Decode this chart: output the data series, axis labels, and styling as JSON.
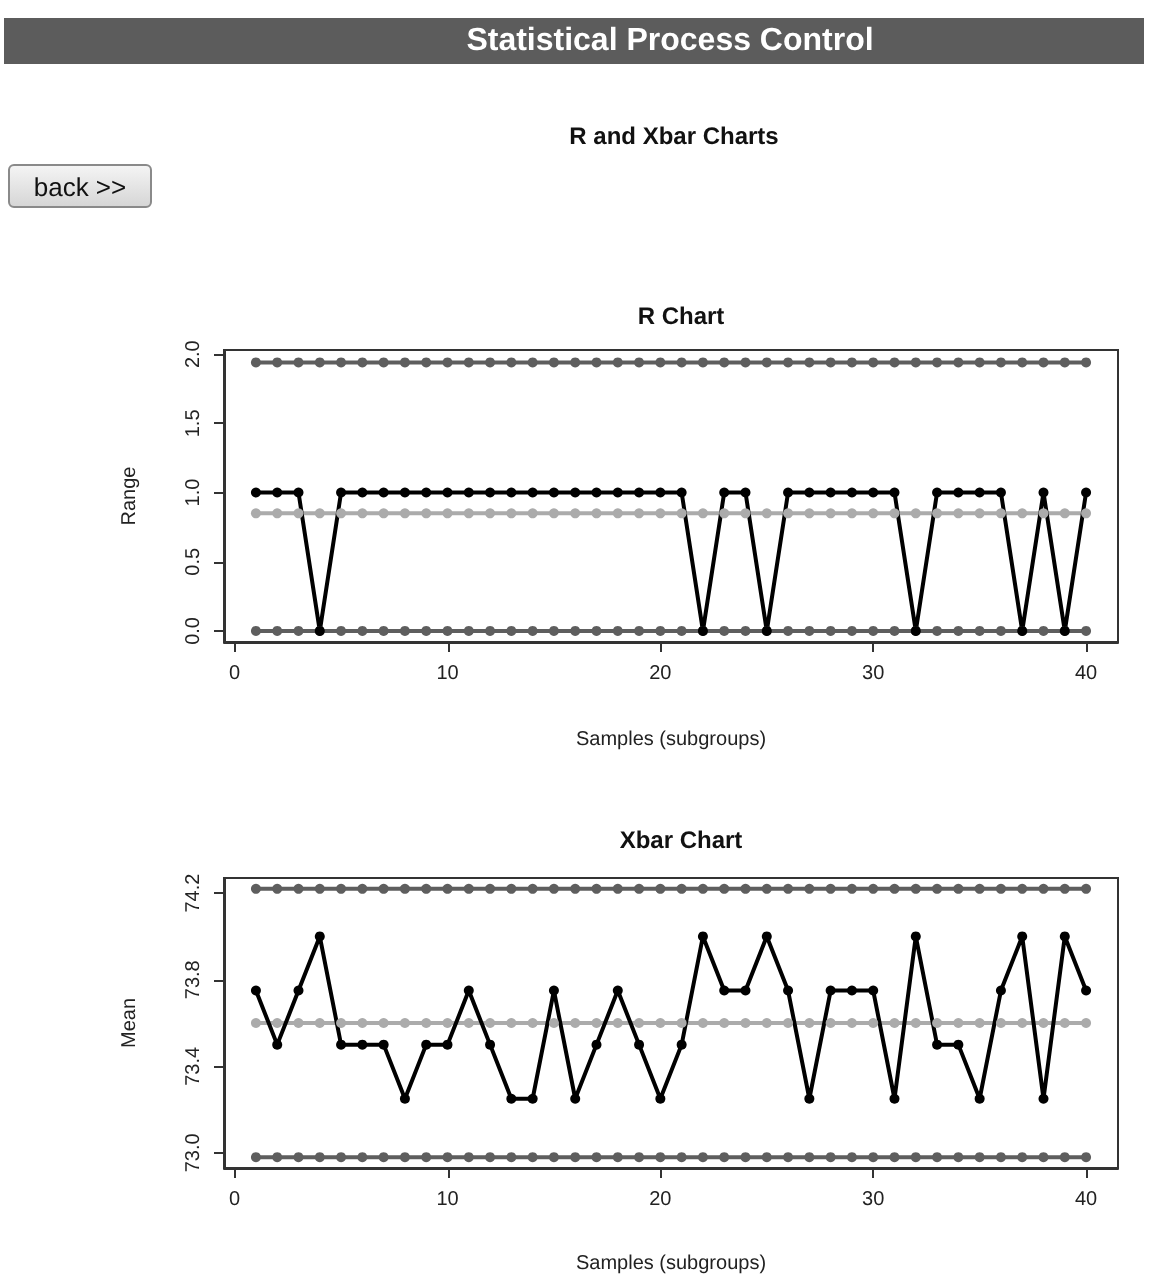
{
  "chart_data": [
    {
      "type": "other",
      "title": "Statistical Process Control",
      "subtitle": "R and Xbar Charts",
      "annotations": [
        "back >>"
      ]
    },
    {
      "type": "line",
      "title": "R Chart",
      "xlabel": "Samples (subgroups)",
      "ylabel": "Range",
      "marker": "circle",
      "x": [
        1,
        2,
        3,
        4,
        5,
        6,
        7,
        8,
        9,
        10,
        11,
        12,
        13,
        14,
        15,
        16,
        17,
        18,
        19,
        20,
        21,
        22,
        23,
        24,
        25,
        26,
        27,
        28,
        29,
        30,
        31,
        32,
        33,
        34,
        35,
        36,
        37,
        38,
        39,
        40
      ],
      "xlim": [
        -0.5,
        41.5
      ],
      "xticks": [
        0,
        10,
        20,
        30,
        40
      ],
      "ylim": [
        -0.08,
        2.03
      ],
      "yticks": [
        {
          "value": 0,
          "label": "0.0"
        },
        0.5,
        {
          "value": 1,
          "label": "1.0"
        },
        1.5,
        {
          "value": 2,
          "label": "2.0"
        }
      ],
      "series": [
        {
          "color": "#5e5e5e",
          "values": [
            1.94,
            1.94,
            1.94,
            1.94,
            1.94,
            1.94,
            1.94,
            1.94,
            1.94,
            1.94,
            1.94,
            1.94,
            1.94,
            1.94,
            1.94,
            1.94,
            1.94,
            1.94,
            1.94,
            1.94,
            1.94,
            1.94,
            1.94,
            1.94,
            1.94,
            1.94,
            1.94,
            1.94,
            1.94,
            1.94,
            1.94,
            1.94,
            1.94,
            1.94,
            1.94,
            1.94,
            1.94,
            1.94,
            1.94,
            1.94
          ]
        },
        {
          "color": "#ababab",
          "values": [
            0.85,
            0.85,
            0.85,
            0.85,
            0.85,
            0.85,
            0.85,
            0.85,
            0.85,
            0.85,
            0.85,
            0.85,
            0.85,
            0.85,
            0.85,
            0.85,
            0.85,
            0.85,
            0.85,
            0.85,
            0.85,
            0.85,
            0.85,
            0.85,
            0.85,
            0.85,
            0.85,
            0.85,
            0.85,
            0.85,
            0.85,
            0.85,
            0.85,
            0.85,
            0.85,
            0.85,
            0.85,
            0.85,
            0.85,
            0.85
          ]
        },
        {
          "color": "#5e5e5e",
          "values": [
            0,
            0,
            0,
            0,
            0,
            0,
            0,
            0,
            0,
            0,
            0,
            0,
            0,
            0,
            0,
            0,
            0,
            0,
            0,
            0,
            0,
            0,
            0,
            0,
            0,
            0,
            0,
            0,
            0,
            0,
            0,
            0,
            0,
            0,
            0,
            0,
            0,
            0,
            0,
            0
          ]
        },
        {
          "color": "#000000",
          "values": [
            1,
            1,
            1,
            0,
            1,
            1,
            1,
            1,
            1,
            1,
            1,
            1,
            1,
            1,
            1,
            1,
            1,
            1,
            1,
            1,
            1,
            0,
            1,
            1,
            0,
            1,
            1,
            1,
            1,
            1,
            1,
            0,
            1,
            1,
            1,
            1,
            0,
            1,
            0,
            1
          ]
        }
      ]
    },
    {
      "type": "line",
      "title": "Xbar Chart",
      "xlabel": "Samples (subgroups)",
      "ylabel": "Mean",
      "marker": "circle",
      "x": [
        1,
        2,
        3,
        4,
        5,
        6,
        7,
        8,
        9,
        10,
        11,
        12,
        13,
        14,
        15,
        16,
        17,
        18,
        19,
        20,
        21,
        22,
        23,
        24,
        25,
        26,
        27,
        28,
        29,
        30,
        31,
        32,
        33,
        34,
        35,
        36,
        37,
        38,
        39,
        40
      ],
      "xlim": [
        -0.5,
        41.5
      ],
      "xticks": [
        0,
        10,
        20,
        30,
        40
      ],
      "ylim": [
        72.93,
        74.27
      ],
      "yticks": [
        {
          "value": 73,
          "label": "73.0"
        },
        73.4,
        73.8,
        74.2
      ],
      "series": [
        {
          "color": "#5e5e5e",
          "values": [
            74.22,
            74.22,
            74.22,
            74.22,
            74.22,
            74.22,
            74.22,
            74.22,
            74.22,
            74.22,
            74.22,
            74.22,
            74.22,
            74.22,
            74.22,
            74.22,
            74.22,
            74.22,
            74.22,
            74.22,
            74.22,
            74.22,
            74.22,
            74.22,
            74.22,
            74.22,
            74.22,
            74.22,
            74.22,
            74.22,
            74.22,
            74.22,
            74.22,
            74.22,
            74.22,
            74.22,
            74.22,
            74.22,
            74.22,
            74.22
          ]
        },
        {
          "color": "#ababab",
          "values": [
            73.6,
            73.6,
            73.6,
            73.6,
            73.6,
            73.6,
            73.6,
            73.6,
            73.6,
            73.6,
            73.6,
            73.6,
            73.6,
            73.6,
            73.6,
            73.6,
            73.6,
            73.6,
            73.6,
            73.6,
            73.6,
            73.6,
            73.6,
            73.6,
            73.6,
            73.6,
            73.6,
            73.6,
            73.6,
            73.6,
            73.6,
            73.6,
            73.6,
            73.6,
            73.6,
            73.6,
            73.6,
            73.6,
            73.6,
            73.6
          ]
        },
        {
          "color": "#5e5e5e",
          "values": [
            72.98,
            72.98,
            72.98,
            72.98,
            72.98,
            72.98,
            72.98,
            72.98,
            72.98,
            72.98,
            72.98,
            72.98,
            72.98,
            72.98,
            72.98,
            72.98,
            72.98,
            72.98,
            72.98,
            72.98,
            72.98,
            72.98,
            72.98,
            72.98,
            72.98,
            72.98,
            72.98,
            72.98,
            72.98,
            72.98,
            72.98,
            72.98,
            72.98,
            72.98,
            72.98,
            72.98,
            72.98,
            72.98,
            72.98,
            72.98
          ]
        },
        {
          "color": "#000000",
          "values": [
            73.75,
            73.5,
            73.75,
            74,
            73.5,
            73.5,
            73.5,
            73.25,
            73.5,
            73.5,
            73.75,
            73.5,
            73.25,
            73.25,
            73.75,
            73.25,
            73.5,
            73.75,
            73.5,
            73.25,
            73.5,
            74,
            73.75,
            73.75,
            74,
            73.75,
            73.25,
            73.75,
            73.75,
            73.75,
            73.25,
            74,
            73.5,
            73.5,
            73.25,
            73.75,
            74,
            73.25,
            74,
            73.75
          ]
        }
      ]
    }
  ]
}
